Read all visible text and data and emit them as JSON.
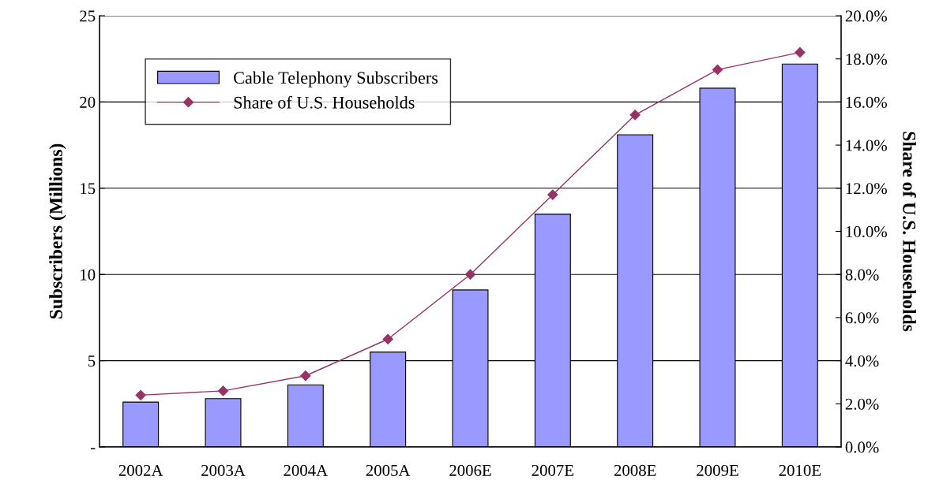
{
  "chart_data": {
    "type": "bar",
    "ylabel": "Subscribers (Millions)",
    "y2label": "Share of U.S. Households",
    "categories": [
      "2002A",
      "2003A",
      "2004A",
      "2005A",
      "2006E",
      "2007E",
      "2008E",
      "2009E",
      "2010E"
    ],
    "series": [
      {
        "name": "Cable Telephony Subscribers",
        "color": "#9999ff",
        "values": [
          2.6,
          2.8,
          3.6,
          5.5,
          9.1,
          13.5,
          18.1,
          20.8,
          22.2
        ]
      },
      {
        "name": "Share of U.S. Households",
        "type": "line",
        "axis": "y2",
        "color": "#993366",
        "marker": "diamond",
        "values": [
          2.4,
          2.6,
          3.3,
          5.0,
          8.0,
          11.7,
          15.4,
          17.5,
          18.3
        ]
      }
    ],
    "ylim": [
      0,
      25
    ],
    "yticks": [
      {
        "value": 0,
        "label": "-"
      },
      5,
      10,
      15,
      20,
      25
    ],
    "y2lim": [
      0,
      20
    ],
    "y2ticks": [
      {
        "value": 0,
        "label": "0.0%"
      },
      {
        "value": 2,
        "label": "2.0%"
      },
      {
        "value": 4,
        "label": "4.0%"
      },
      {
        "value": 6,
        "label": "6.0%"
      },
      {
        "value": 8,
        "label": "8.0%"
      },
      {
        "value": 10,
        "label": "10.0%"
      },
      {
        "value": 12,
        "label": "12.0%"
      },
      {
        "value": 14,
        "label": "14.0%"
      },
      {
        "value": 16,
        "label": "16.0%"
      },
      {
        "value": 18,
        "label": "18.0%"
      },
      {
        "value": 20,
        "label": "20.0%"
      }
    ],
    "grid": "y",
    "legend": "top left"
  }
}
